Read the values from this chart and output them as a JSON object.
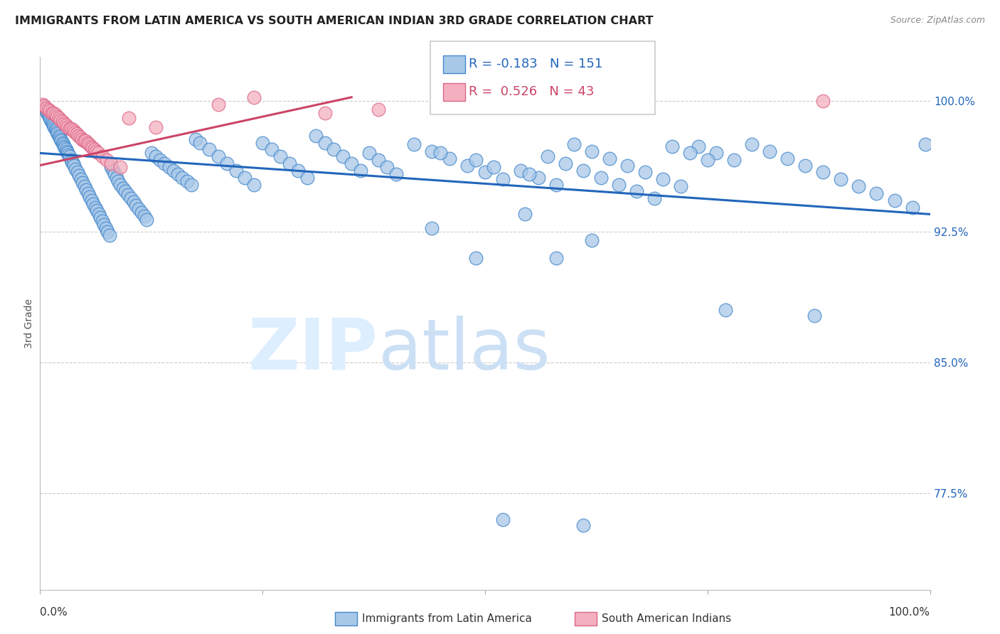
{
  "title": "IMMIGRANTS FROM LATIN AMERICA VS SOUTH AMERICAN INDIAN 3RD GRADE CORRELATION CHART",
  "source_text": "Source: ZipAtlas.com",
  "ylabel": "3rd Grade",
  "xlim": [
    0.0,
    1.0
  ],
  "ylim": [
    0.72,
    1.025
  ],
  "yticks": [
    0.775,
    0.85,
    0.925,
    1.0
  ],
  "ytick_labels": [
    "77.5%",
    "85.0%",
    "92.5%",
    "100.0%"
  ],
  "blue_R": "-0.183",
  "blue_N": "151",
  "pink_R": "0.526",
  "pink_N": "43",
  "blue_color": "#a8c8e8",
  "pink_color": "#f4b0c0",
  "blue_edge_color": "#4488cc",
  "pink_edge_color": "#dd6688",
  "blue_line_color": "#2266bb",
  "pink_line_color": "#cc4466",
  "legend_blue_label": "Immigrants from Latin America",
  "legend_pink_label": "South American Indians",
  "blue_trendline_x": [
    0.0,
    1.0
  ],
  "blue_trendline_y": [
    0.97,
    0.935
  ],
  "pink_trendline_x": [
    0.0,
    0.35
  ],
  "pink_trendline_y": [
    0.963,
    1.002
  ],
  "blue_x": [
    0.004,
    0.005,
    0.006,
    0.007,
    0.008,
    0.009,
    0.01,
    0.011,
    0.012,
    0.013,
    0.014,
    0.015,
    0.016,
    0.017,
    0.018,
    0.019,
    0.02,
    0.021,
    0.022,
    0.023,
    0.024,
    0.025,
    0.026,
    0.027,
    0.028,
    0.029,
    0.03,
    0.031,
    0.032,
    0.033,
    0.035,
    0.036,
    0.037,
    0.038,
    0.04,
    0.042,
    0.044,
    0.046,
    0.048,
    0.05,
    0.052,
    0.054,
    0.056,
    0.058,
    0.06,
    0.062,
    0.064,
    0.066,
    0.068,
    0.07,
    0.072,
    0.074,
    0.076,
    0.078,
    0.08,
    0.082,
    0.084,
    0.086,
    0.088,
    0.09,
    0.093,
    0.096,
    0.099,
    0.102,
    0.105,
    0.108,
    0.111,
    0.114,
    0.117,
    0.12,
    0.125,
    0.13,
    0.135,
    0.14,
    0.145,
    0.15,
    0.155,
    0.16,
    0.165,
    0.17,
    0.175,
    0.18,
    0.19,
    0.2,
    0.21,
    0.22,
    0.23,
    0.24,
    0.25,
    0.26,
    0.27,
    0.28,
    0.29,
    0.3,
    0.31,
    0.32,
    0.33,
    0.34,
    0.35,
    0.36,
    0.37,
    0.38,
    0.39,
    0.4,
    0.42,
    0.44,
    0.46,
    0.48,
    0.5,
    0.52,
    0.54,
    0.56,
    0.58,
    0.6,
    0.62,
    0.64,
    0.66,
    0.68,
    0.7,
    0.72,
    0.74,
    0.76,
    0.78,
    0.8,
    0.82,
    0.84,
    0.86,
    0.88,
    0.9,
    0.92,
    0.94,
    0.96,
    0.98,
    0.995,
    0.45,
    0.49,
    0.51,
    0.55,
    0.57,
    0.59,
    0.61,
    0.63,
    0.65,
    0.67,
    0.69,
    0.71,
    0.73,
    0.75,
    0.62,
    0.58,
    0.545
  ],
  "blue_y": [
    0.997,
    0.996,
    0.995,
    0.994,
    0.993,
    0.992,
    0.991,
    0.99,
    0.989,
    0.988,
    0.987,
    0.986,
    0.985,
    0.984,
    0.983,
    0.982,
    0.981,
    0.98,
    0.979,
    0.978,
    0.977,
    0.976,
    0.975,
    0.974,
    0.973,
    0.972,
    0.971,
    0.97,
    0.969,
    0.968,
    0.966,
    0.965,
    0.964,
    0.963,
    0.961,
    0.959,
    0.957,
    0.955,
    0.953,
    0.951,
    0.949,
    0.947,
    0.945,
    0.943,
    0.941,
    0.939,
    0.937,
    0.935,
    0.933,
    0.931,
    0.929,
    0.927,
    0.925,
    0.923,
    0.962,
    0.96,
    0.958,
    0.956,
    0.954,
    0.952,
    0.95,
    0.948,
    0.946,
    0.944,
    0.942,
    0.94,
    0.938,
    0.936,
    0.934,
    0.932,
    0.97,
    0.968,
    0.966,
    0.964,
    0.962,
    0.96,
    0.958,
    0.956,
    0.954,
    0.952,
    0.978,
    0.976,
    0.972,
    0.968,
    0.964,
    0.96,
    0.956,
    0.952,
    0.976,
    0.972,
    0.968,
    0.964,
    0.96,
    0.956,
    0.98,
    0.976,
    0.972,
    0.968,
    0.964,
    0.96,
    0.97,
    0.966,
    0.962,
    0.958,
    0.975,
    0.971,
    0.967,
    0.963,
    0.959,
    0.955,
    0.96,
    0.956,
    0.952,
    0.975,
    0.971,
    0.967,
    0.963,
    0.959,
    0.955,
    0.951,
    0.974,
    0.97,
    0.966,
    0.975,
    0.971,
    0.967,
    0.963,
    0.959,
    0.955,
    0.951,
    0.947,
    0.943,
    0.939,
    0.975,
    0.97,
    0.966,
    0.962,
    0.958,
    0.968,
    0.964,
    0.96,
    0.956,
    0.952,
    0.948,
    0.944,
    0.974,
    0.97,
    0.966,
    0.92,
    0.91,
    0.935
  ],
  "blue_outlier_x": [
    0.44,
    0.49,
    0.77,
    0.87,
    0.52,
    0.61
  ],
  "blue_outlier_y": [
    0.927,
    0.91,
    0.88,
    0.877,
    0.76,
    0.757
  ],
  "pink_x": [
    0.003,
    0.005,
    0.007,
    0.009,
    0.011,
    0.013,
    0.015,
    0.017,
    0.019,
    0.021,
    0.023,
    0.025,
    0.027,
    0.029,
    0.031,
    0.033,
    0.035,
    0.037,
    0.039,
    0.041,
    0.043,
    0.045,
    0.047,
    0.049,
    0.051,
    0.053,
    0.055,
    0.057,
    0.059,
    0.061,
    0.063,
    0.065,
    0.07,
    0.075,
    0.08,
    0.09,
    0.1,
    0.13,
    0.2,
    0.24,
    0.32,
    0.38,
    0.88
  ],
  "pink_y": [
    0.998,
    0.997,
    0.996,
    0.995,
    0.994,
    0.993,
    0.993,
    0.992,
    0.991,
    0.99,
    0.989,
    0.988,
    0.987,
    0.986,
    0.985,
    0.984,
    0.984,
    0.983,
    0.982,
    0.981,
    0.98,
    0.979,
    0.978,
    0.977,
    0.977,
    0.976,
    0.975,
    0.974,
    0.973,
    0.972,
    0.971,
    0.97,
    0.968,
    0.966,
    0.964,
    0.962,
    0.99,
    0.985,
    0.998,
    1.002,
    0.993,
    0.995,
    1.0
  ]
}
